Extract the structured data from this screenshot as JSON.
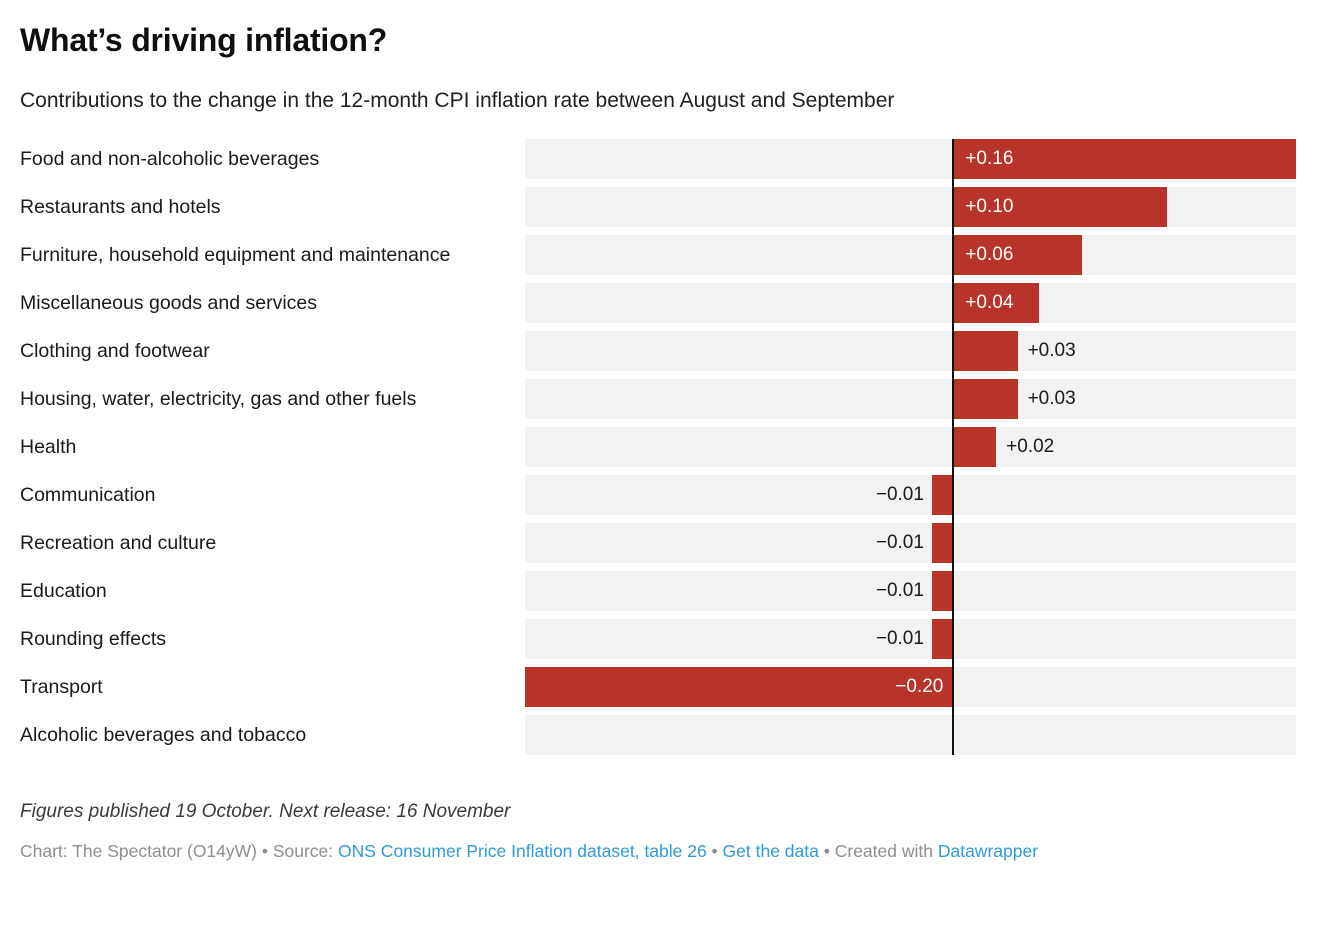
{
  "header": {
    "title": "What’s driving inflation?",
    "subtitle": "Contributions to the change in the 12-month CPI inflation rate between August and September"
  },
  "chart_data": {
    "type": "bar",
    "orientation": "horizontal",
    "title": "What’s driving inflation?",
    "subtitle": "Contributions to the change in the 12-month CPI inflation rate between August and September",
    "xlim": [
      -0.2,
      0.16
    ],
    "zero_line": true,
    "grid": false,
    "legend": "none",
    "bar_color": "#b8332a",
    "track_color": "#f2f2f2",
    "inside_label_color": "#ffffff",
    "outside_label_color": "#1a1a1a",
    "categories": [
      "Food and non-alcoholic beverages",
      "Restaurants and hotels",
      "Furniture, household equipment and maintenance",
      "Miscellaneous goods and services",
      "Clothing and footwear",
      "Housing, water, electricity, gas and other fuels",
      "Health",
      "Communication",
      "Recreation and culture",
      "Education",
      "Rounding effects",
      "Transport",
      "Alcoholic beverages and tobacco"
    ],
    "values": [
      0.16,
      0.1,
      0.06,
      0.04,
      0.03,
      0.03,
      0.02,
      -0.01,
      -0.01,
      -0.01,
      -0.01,
      -0.2,
      0
    ],
    "value_labels": [
      "+0.16",
      "+0.10",
      "+0.06",
      "+0.04",
      "+0.03",
      "+0.03",
      "+0.02",
      "−0.01",
      "−0.01",
      "−0.01",
      "−0.01",
      "−0.20",
      ""
    ]
  },
  "footer": {
    "note": "Figures published 19 October. Next release: 16 November",
    "byline_prefix": "Chart: The Spectator (O14yW) • Source: ",
    "source_link": "ONS Consumer Price Inflation dataset, table 26",
    "separator1": " • ",
    "data_link": "Get the data",
    "separator2": " • ",
    "created_with": "Created with ",
    "datawrapper_link": "Datawrapper",
    "link_color": "#2e9bd6"
  }
}
